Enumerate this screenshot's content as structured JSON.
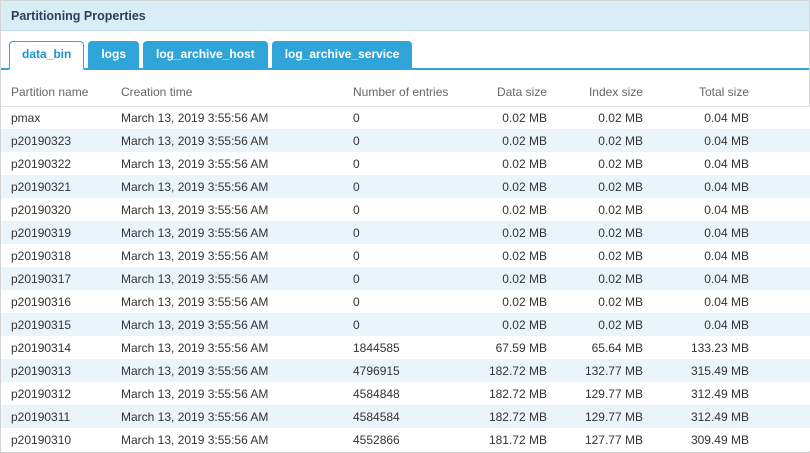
{
  "panel": {
    "title": "Partitioning Properties"
  },
  "tabs": [
    {
      "label": "data_bin",
      "active": true
    },
    {
      "label": "logs",
      "active": false
    },
    {
      "label": "log_archive_host",
      "active": false
    },
    {
      "label": "log_archive_service",
      "active": false
    }
  ],
  "colors": {
    "tab_blue": "#2fa4d9",
    "title_bar_bg": "#d9edf6",
    "row_alt_bg": "#e9f5fb"
  },
  "table": {
    "headers": [
      "Partition name",
      "Creation time",
      "Number of entries",
      "Data size",
      "Index size",
      "Total size"
    ],
    "rows": [
      {
        "name": "pmax",
        "creation": "March 13, 2019 3:55:56 AM",
        "entries": "0",
        "data_size": "0.02 MB",
        "index_size": "0.02 MB",
        "total_size": "0.04 MB"
      },
      {
        "name": "p20190323",
        "creation": "March 13, 2019 3:55:56 AM",
        "entries": "0",
        "data_size": "0.02 MB",
        "index_size": "0.02 MB",
        "total_size": "0.04 MB"
      },
      {
        "name": "p20190322",
        "creation": "March 13, 2019 3:55:56 AM",
        "entries": "0",
        "data_size": "0.02 MB",
        "index_size": "0.02 MB",
        "total_size": "0.04 MB"
      },
      {
        "name": "p20190321",
        "creation": "March 13, 2019 3:55:56 AM",
        "entries": "0",
        "data_size": "0.02 MB",
        "index_size": "0.02 MB",
        "total_size": "0.04 MB"
      },
      {
        "name": "p20190320",
        "creation": "March 13, 2019 3:55:56 AM",
        "entries": "0",
        "data_size": "0.02 MB",
        "index_size": "0.02 MB",
        "total_size": "0.04 MB"
      },
      {
        "name": "p20190319",
        "creation": "March 13, 2019 3:55:56 AM",
        "entries": "0",
        "data_size": "0.02 MB",
        "index_size": "0.02 MB",
        "total_size": "0.04 MB"
      },
      {
        "name": "p20190318",
        "creation": "March 13, 2019 3:55:56 AM",
        "entries": "0",
        "data_size": "0.02 MB",
        "index_size": "0.02 MB",
        "total_size": "0.04 MB"
      },
      {
        "name": "p20190317",
        "creation": "March 13, 2019 3:55:56 AM",
        "entries": "0",
        "data_size": "0.02 MB",
        "index_size": "0.02 MB",
        "total_size": "0.04 MB"
      },
      {
        "name": "p20190316",
        "creation": "March 13, 2019 3:55:56 AM",
        "entries": "0",
        "data_size": "0.02 MB",
        "index_size": "0.02 MB",
        "total_size": "0.04 MB"
      },
      {
        "name": "p20190315",
        "creation": "March 13, 2019 3:55:56 AM",
        "entries": "0",
        "data_size": "0.02 MB",
        "index_size": "0.02 MB",
        "total_size": "0.04 MB"
      },
      {
        "name": "p20190314",
        "creation": "March 13, 2019 3:55:56 AM",
        "entries": "1844585",
        "data_size": "67.59 MB",
        "index_size": "65.64 MB",
        "total_size": "133.23 MB"
      },
      {
        "name": "p20190313",
        "creation": "March 13, 2019 3:55:56 AM",
        "entries": "4796915",
        "data_size": "182.72 MB",
        "index_size": "132.77 MB",
        "total_size": "315.49 MB"
      },
      {
        "name": "p20190312",
        "creation": "March 13, 2019 3:55:56 AM",
        "entries": "4584848",
        "data_size": "182.72 MB",
        "index_size": "129.77 MB",
        "total_size": "312.49 MB"
      },
      {
        "name": "p20190311",
        "creation": "March 13, 2019 3:55:56 AM",
        "entries": "4584584",
        "data_size": "182.72 MB",
        "index_size": "129.77 MB",
        "total_size": "312.49 MB"
      },
      {
        "name": "p20190310",
        "creation": "March 13, 2019 3:55:56 AM",
        "entries": "4552866",
        "data_size": "181.72 MB",
        "index_size": "127.77 MB",
        "total_size": "309.49 MB"
      }
    ]
  }
}
